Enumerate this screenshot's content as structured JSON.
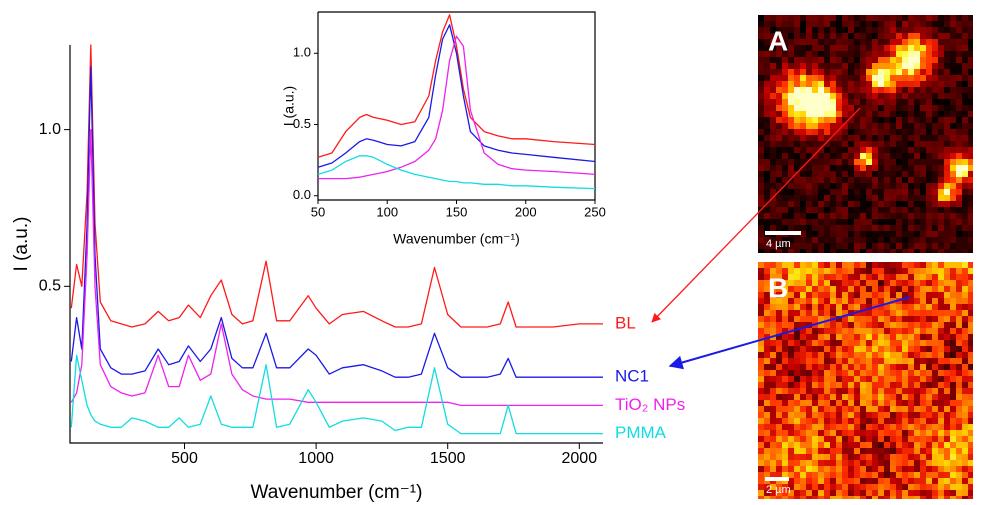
{
  "chart_data": [
    {
      "type": "line",
      "xlabel": "Wavenumber (cm⁻¹)",
      "ylabel": "I (a.u.)",
      "xlim": [
        65,
        2090
      ],
      "ylim": [
        0,
        1.27
      ],
      "xticks": [
        500,
        1000,
        1500,
        2000
      ],
      "yticks": [
        0.5,
        {
          "value": 1,
          "label": "1.0"
        }
      ],
      "x": [
        70,
        90,
        110,
        130,
        144,
        160,
        180,
        220,
        260,
        300,
        350,
        400,
        440,
        480,
        515,
        560,
        600,
        640,
        680,
        720,
        760,
        810,
        850,
        900,
        970,
        1000,
        1050,
        1100,
        1180,
        1250,
        1300,
        1350,
        1400,
        1450,
        1500,
        1550,
        1600,
        1650,
        1700,
        1730,
        1760,
        1800,
        1900,
        2000,
        2090
      ],
      "series": [
        {
          "name": "BL",
          "color": "#ff1a1a",
          "values": [
            0.43,
            0.57,
            0.5,
            0.8,
            1.27,
            0.7,
            0.45,
            0.39,
            0.38,
            0.37,
            0.38,
            0.42,
            0.39,
            0.4,
            0.44,
            0.4,
            0.47,
            0.52,
            0.41,
            0.38,
            0.39,
            0.58,
            0.39,
            0.39,
            0.47,
            0.43,
            0.38,
            0.41,
            0.42,
            0.39,
            0.37,
            0.37,
            0.38,
            0.56,
            0.41,
            0.37,
            0.37,
            0.37,
            0.38,
            0.45,
            0.37,
            0.37,
            0.37,
            0.38,
            0.38
          ]
        },
        {
          "name": "NC1",
          "color": "#1a1ae6",
          "values": [
            0.26,
            0.4,
            0.3,
            0.7,
            1.2,
            0.6,
            0.3,
            0.24,
            0.22,
            0.22,
            0.23,
            0.3,
            0.25,
            0.26,
            0.31,
            0.26,
            0.3,
            0.4,
            0.27,
            0.24,
            0.24,
            0.35,
            0.24,
            0.24,
            0.3,
            0.28,
            0.22,
            0.24,
            0.25,
            0.23,
            0.21,
            0.21,
            0.22,
            0.35,
            0.24,
            0.21,
            0.21,
            0.21,
            0.22,
            0.27,
            0.21,
            0.21,
            0.21,
            0.21,
            0.21
          ]
        },
        {
          "name": "TiO₂ NPs",
          "color": "#ee22ee",
          "values": [
            0.13,
            0.16,
            0.25,
            0.6,
            1.0,
            0.5,
            0.25,
            0.18,
            0.16,
            0.15,
            0.16,
            0.28,
            0.18,
            0.18,
            0.28,
            0.2,
            0.22,
            0.38,
            0.22,
            0.17,
            0.15,
            0.14,
            0.14,
            0.14,
            0.13,
            0.13,
            0.13,
            0.13,
            0.13,
            0.13,
            0.13,
            0.13,
            0.13,
            0.13,
            0.13,
            0.12,
            0.12,
            0.12,
            0.12,
            0.12,
            0.12,
            0.12,
            0.12,
            0.12,
            0.12
          ]
        },
        {
          "name": "PMMA",
          "color": "#11dde0",
          "values": [
            0.05,
            0.28,
            0.2,
            0.12,
            0.09,
            0.07,
            0.06,
            0.05,
            0.05,
            0.08,
            0.07,
            0.05,
            0.05,
            0.08,
            0.05,
            0.06,
            0.15,
            0.06,
            0.05,
            0.05,
            0.05,
            0.25,
            0.05,
            0.06,
            0.17,
            0.13,
            0.05,
            0.07,
            0.08,
            0.07,
            0.04,
            0.05,
            0.05,
            0.24,
            0.06,
            0.03,
            0.03,
            0.03,
            0.03,
            0.12,
            0.03,
            0.03,
            0.03,
            0.03,
            0.03
          ]
        }
      ]
    },
    {
      "type": "line",
      "xlabel": "Wavenumber (cm⁻¹)",
      "ylabel": "I (a.u.)",
      "xlim": [
        50,
        250
      ],
      "ylim": [
        -0.03,
        1.29
      ],
      "xticks": [
        50,
        100,
        150,
        200,
        250
      ],
      "yticks": [
        {
          "value": 0,
          "label": "0.0"
        },
        0.5,
        {
          "value": 1,
          "label": "1.0"
        }
      ],
      "x": [
        50,
        60,
        70,
        80,
        85,
        90,
        100,
        110,
        120,
        130,
        135,
        140,
        145,
        150,
        155,
        160,
        170,
        180,
        190,
        200,
        220,
        250
      ],
      "series": [
        {
          "color": "#ff1a1a",
          "values": [
            0.27,
            0.3,
            0.45,
            0.55,
            0.57,
            0.55,
            0.53,
            0.5,
            0.52,
            0.7,
            0.95,
            1.15,
            1.27,
            1.05,
            0.75,
            0.55,
            0.45,
            0.42,
            0.4,
            0.4,
            0.38,
            0.36
          ]
        },
        {
          "color": "#1a1ae6",
          "values": [
            0.2,
            0.23,
            0.3,
            0.38,
            0.4,
            0.39,
            0.36,
            0.35,
            0.38,
            0.55,
            0.85,
            1.1,
            1.2,
            1.0,
            0.7,
            0.45,
            0.35,
            0.32,
            0.3,
            0.29,
            0.27,
            0.24
          ]
        },
        {
          "color": "#ee22ee",
          "values": [
            0.12,
            0.12,
            0.12,
            0.13,
            0.14,
            0.15,
            0.17,
            0.2,
            0.24,
            0.32,
            0.4,
            0.6,
            0.95,
            1.12,
            1.05,
            0.6,
            0.3,
            0.22,
            0.19,
            0.18,
            0.17,
            0.15
          ]
        },
        {
          "color": "#11dde0",
          "values": [
            0.15,
            0.18,
            0.24,
            0.28,
            0.28,
            0.27,
            0.22,
            0.18,
            0.15,
            0.13,
            0.12,
            0.11,
            0.1,
            0.1,
            0.09,
            0.09,
            0.08,
            0.08,
            0.07,
            0.07,
            0.06,
            0.05
          ]
        }
      ]
    }
  ],
  "panels": [
    {
      "label": "A",
      "scale_bar": "4 µm"
    },
    {
      "label": "B",
      "scale_bar": "2 µm"
    }
  ]
}
